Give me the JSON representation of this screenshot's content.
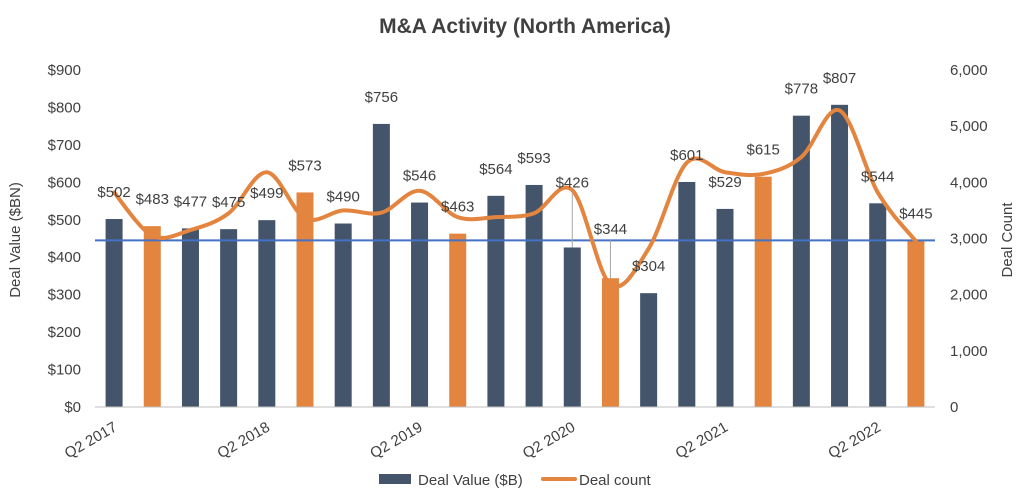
{
  "chart_data": {
    "type": "bar",
    "title": "M&A Activity (North America)",
    "ylabel": "Deal Value ($BN)",
    "y2label": "Deal Count",
    "ylim": [
      0,
      900
    ],
    "y2lim": [
      0,
      6000
    ],
    "y_ticks": [
      "$0",
      "$100",
      "$200",
      "$300",
      "$400",
      "$500",
      "$600",
      "$700",
      "$800",
      "$900"
    ],
    "y2_ticks": [
      "0",
      "1,000",
      "2,000",
      "3,000",
      "4,000",
      "5,000",
      "6,000"
    ],
    "x_tick_labels": [
      {
        "index": 0,
        "label": "Q2 2017"
      },
      {
        "index": 4,
        "label": "Q2 2018"
      },
      {
        "index": 8,
        "label": "Q2 2019"
      },
      {
        "index": 12,
        "label": "Q2 2020"
      },
      {
        "index": 16,
        "label": "Q2 2021"
      },
      {
        "index": 20,
        "label": "Q2 2022"
      }
    ],
    "grid": false,
    "legend_position": "bottom",
    "series": [
      {
        "name": "Deal Value ($B)",
        "type": "bar",
        "axis": "left",
        "color": "#44546a",
        "highlight_color": "#e3843f",
        "values": [
          502,
          483,
          477,
          475,
          499,
          573,
          490,
          756,
          546,
          463,
          564,
          593,
          426,
          344,
          304,
          601,
          529,
          615,
          778,
          807,
          544,
          445
        ],
        "labels": [
          "$502",
          "$483",
          "$477",
          "$475",
          "$499",
          "$573",
          "$490",
          "$756",
          "$546",
          "$463",
          "$564",
          "$593",
          "$426",
          "$344",
          "$304",
          "$601",
          "$529",
          "$615",
          "$778",
          "$807",
          "$544",
          "$445"
        ],
        "highlighted_indices": [
          1,
          5,
          9,
          13,
          17,
          21
        ]
      },
      {
        "name": "Deal count",
        "type": "line",
        "axis": "right",
        "color": "#e3843f",
        "values": [
          3820,
          3050,
          3150,
          3450,
          4180,
          3360,
          3500,
          3460,
          3850,
          3380,
          3380,
          3450,
          3860,
          2180,
          2820,
          4350,
          4180,
          4150,
          4450,
          5280,
          3820,
          2950
        ]
      }
    ],
    "reference_line": {
      "axis": "left",
      "value": 445,
      "color": "#4472c4"
    }
  }
}
